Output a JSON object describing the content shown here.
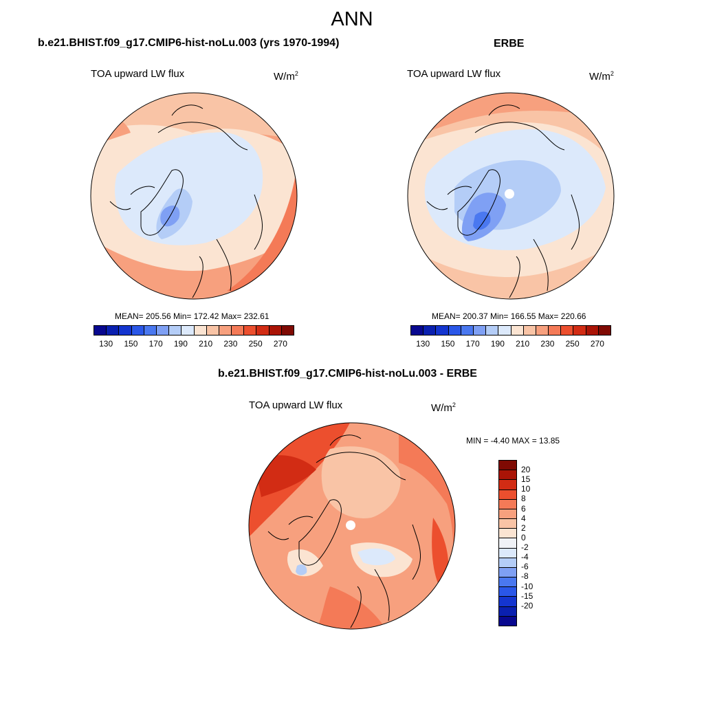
{
  "title": "ANN",
  "panels": [
    {
      "heading": "b.e21.BHIST.f09_g17.CMIP6-hist-noLu.003 (yrs 1970-1994)",
      "variable": "TOA upward LW flux",
      "units": "W/m",
      "units_sup": "2",
      "stats": "MEAN= 205.56  Min= 172.42  Max= 232.61"
    },
    {
      "heading": "ERBE",
      "variable": "TOA upward LW flux",
      "units": "W/m",
      "units_sup": "2",
      "stats": "MEAN= 200.37  Min= 166.55  Max= 220.66"
    },
    {
      "heading": "b.e21.BHIST.f09_g17.CMIP6-hist-noLu.003 - ERBE",
      "variable": "TOA upward LW flux",
      "units": "W/m",
      "units_sup": "2",
      "stats": "MIN =  -4.40 MAX =  13.85"
    }
  ],
  "colorbar_abs": {
    "colors": [
      "#08088f",
      "#0a20b0",
      "#1435cf",
      "#2a57e8",
      "#4a78f0",
      "#7fa0f4",
      "#b4cdf7",
      "#dce9fb",
      "#fbe4d2",
      "#f9c4a6",
      "#f7a07e",
      "#f47a57",
      "#ec4f2e",
      "#d22c14",
      "#aa1406",
      "#7f0a03"
    ],
    "labels": [
      "130",
      "150",
      "170",
      "190",
      "210",
      "230",
      "250",
      "270"
    ]
  },
  "colorbar_diff": {
    "colors": [
      "#7f0a03",
      "#aa1406",
      "#d22c14",
      "#ec4f2e",
      "#f47a57",
      "#f7a07e",
      "#f9c4a6",
      "#fbe4d2",
      "#f0f2f6",
      "#dce9fb",
      "#b4cdf7",
      "#7fa0f4",
      "#4a78f0",
      "#2a57e8",
      "#1435cf",
      "#0a20b0",
      "#08088f"
    ],
    "labels": [
      "20",
      "15",
      "10",
      "8",
      "6",
      "4",
      "2",
      "0",
      "-2",
      "-4",
      "-6",
      "-8",
      "-10",
      "-15",
      "-20"
    ]
  }
}
